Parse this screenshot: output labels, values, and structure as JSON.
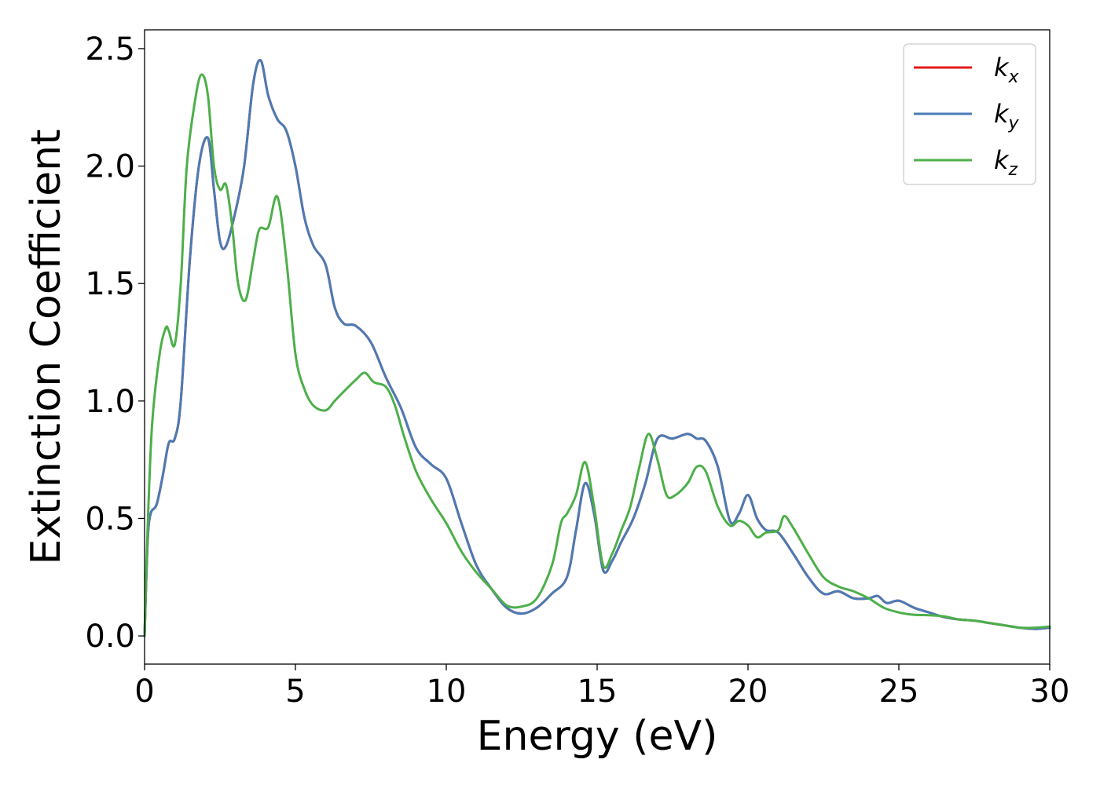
{
  "chart_data": {
    "type": "line",
    "xlabel": "Energy (eV)",
    "ylabel": "Extinction Coefficient",
    "xlim": [
      0,
      30
    ],
    "ylim": [
      -0.12,
      2.58
    ],
    "xticks": [
      0,
      5,
      10,
      15,
      20,
      25,
      30
    ],
    "xtick_labels": [
      "0",
      "5",
      "10",
      "15",
      "20",
      "25",
      "30"
    ],
    "yticks": [
      0.0,
      0.5,
      1.0,
      1.5,
      2.0,
      2.5
    ],
    "ytick_labels": [
      "0.0",
      "0.5",
      "1.0",
      "1.5",
      "2.0",
      "2.5"
    ],
    "grid": false,
    "legend_position": "top-right",
    "series": [
      {
        "name": "k_x",
        "label_base": "k",
        "label_sub": "x",
        "color": "#e41a1c",
        "x": [
          0,
          0.1,
          0.2,
          0.4,
          0.6,
          0.8,
          1.0,
          1.2,
          1.5,
          1.8,
          2.1,
          2.3,
          2.5,
          2.7,
          3.0,
          3.3,
          3.6,
          3.85,
          4.1,
          4.4,
          4.7,
          5.0,
          5.3,
          5.6,
          6.0,
          6.3,
          6.6,
          7.0,
          7.5,
          8.0,
          8.5,
          9.0,
          9.5,
          10.0,
          10.5,
          11.0,
          11.5,
          12.0,
          12.5,
          13.0,
          13.5,
          14.0,
          14.3,
          14.6,
          14.9,
          15.2,
          15.5,
          15.8,
          16.2,
          16.6,
          17.0,
          17.5,
          18.0,
          18.3,
          18.6,
          19.0,
          19.4,
          19.7,
          20.0,
          20.3,
          20.6,
          21.0,
          21.5,
          22.0,
          22.5,
          23.0,
          23.5,
          24.0,
          24.3,
          24.6,
          25.0,
          25.5,
          26.0,
          26.5,
          27.0,
          27.5,
          28.0,
          28.5,
          29.0,
          29.5,
          30.0
        ],
        "y": [
          0.0,
          0.4,
          0.52,
          0.56,
          0.68,
          0.82,
          0.84,
          1.0,
          1.6,
          2.0,
          2.12,
          1.9,
          1.68,
          1.66,
          1.8,
          2.0,
          2.35,
          2.45,
          2.3,
          2.2,
          2.15,
          2.0,
          1.78,
          1.66,
          1.58,
          1.4,
          1.33,
          1.32,
          1.25,
          1.1,
          0.97,
          0.8,
          0.73,
          0.67,
          0.48,
          0.3,
          0.2,
          0.12,
          0.095,
          0.12,
          0.18,
          0.25,
          0.45,
          0.65,
          0.52,
          0.28,
          0.32,
          0.4,
          0.5,
          0.65,
          0.84,
          0.84,
          0.86,
          0.84,
          0.83,
          0.72,
          0.49,
          0.52,
          0.6,
          0.5,
          0.45,
          0.44,
          0.35,
          0.25,
          0.18,
          0.19,
          0.16,
          0.16,
          0.17,
          0.14,
          0.15,
          0.12,
          0.1,
          0.08,
          0.07,
          0.065,
          0.055,
          0.045,
          0.035,
          0.03,
          0.035
        ]
      },
      {
        "name": "k_y",
        "label_base": "k",
        "label_sub": "y",
        "color": "#4b7bb4",
        "x": [
          0,
          0.1,
          0.2,
          0.4,
          0.6,
          0.8,
          1.0,
          1.2,
          1.5,
          1.8,
          2.1,
          2.3,
          2.5,
          2.7,
          3.0,
          3.3,
          3.6,
          3.85,
          4.1,
          4.4,
          4.7,
          5.0,
          5.3,
          5.6,
          6.0,
          6.3,
          6.6,
          7.0,
          7.5,
          8.0,
          8.5,
          9.0,
          9.5,
          10.0,
          10.5,
          11.0,
          11.5,
          12.0,
          12.5,
          13.0,
          13.5,
          14.0,
          14.3,
          14.6,
          14.9,
          15.2,
          15.5,
          15.8,
          16.2,
          16.6,
          17.0,
          17.5,
          18.0,
          18.3,
          18.6,
          19.0,
          19.4,
          19.7,
          20.0,
          20.3,
          20.6,
          21.0,
          21.5,
          22.0,
          22.5,
          23.0,
          23.5,
          24.0,
          24.3,
          24.6,
          25.0,
          25.5,
          26.0,
          26.5,
          27.0,
          27.5,
          28.0,
          28.5,
          29.0,
          29.5,
          30.0
        ],
        "y": [
          0.0,
          0.4,
          0.52,
          0.56,
          0.68,
          0.82,
          0.84,
          1.0,
          1.6,
          2.0,
          2.12,
          1.9,
          1.68,
          1.66,
          1.8,
          2.0,
          2.35,
          2.45,
          2.3,
          2.2,
          2.15,
          2.0,
          1.78,
          1.66,
          1.58,
          1.4,
          1.33,
          1.32,
          1.25,
          1.1,
          0.97,
          0.8,
          0.73,
          0.67,
          0.48,
          0.3,
          0.2,
          0.12,
          0.095,
          0.12,
          0.18,
          0.25,
          0.45,
          0.65,
          0.52,
          0.28,
          0.32,
          0.4,
          0.5,
          0.65,
          0.84,
          0.84,
          0.86,
          0.84,
          0.83,
          0.72,
          0.49,
          0.52,
          0.6,
          0.5,
          0.45,
          0.44,
          0.35,
          0.25,
          0.18,
          0.19,
          0.16,
          0.16,
          0.17,
          0.14,
          0.15,
          0.12,
          0.1,
          0.08,
          0.07,
          0.065,
          0.055,
          0.045,
          0.035,
          0.03,
          0.035
        ]
      },
      {
        "name": "k_z",
        "label_base": "k",
        "label_sub": "z",
        "color": "#4daf4a",
        "x": [
          0,
          0.1,
          0.25,
          0.5,
          0.7,
          0.8,
          1.0,
          1.2,
          1.4,
          1.7,
          1.9,
          2.1,
          2.3,
          2.5,
          2.7,
          2.9,
          3.1,
          3.35,
          3.6,
          3.8,
          4.1,
          4.4,
          4.7,
          5.0,
          5.3,
          5.6,
          6.0,
          6.3,
          6.6,
          7.0,
          7.3,
          7.6,
          8.0,
          8.3,
          8.6,
          9.0,
          9.5,
          10.0,
          10.5,
          11.0,
          11.5,
          12.0,
          12.5,
          13.0,
          13.5,
          13.8,
          14.0,
          14.3,
          14.6,
          14.9,
          15.2,
          15.5,
          15.8,
          16.1,
          16.4,
          16.7,
          17.0,
          17.3,
          17.6,
          18.0,
          18.3,
          18.6,
          19.0,
          19.4,
          19.7,
          20.0,
          20.3,
          20.6,
          21.0,
          21.2,
          21.5,
          22.0,
          22.5,
          23.0,
          23.5,
          24.0,
          24.5,
          25.0,
          25.5,
          26.0,
          26.5,
          27.0,
          27.5,
          28.0,
          28.5,
          29.0,
          29.5,
          30.0
        ],
        "y": [
          0.0,
          0.45,
          0.9,
          1.2,
          1.31,
          1.3,
          1.24,
          1.5,
          2.0,
          2.3,
          2.39,
          2.3,
          2.0,
          1.9,
          1.92,
          1.75,
          1.5,
          1.43,
          1.6,
          1.73,
          1.74,
          1.87,
          1.6,
          1.2,
          1.05,
          0.98,
          0.96,
          1.0,
          1.04,
          1.09,
          1.12,
          1.08,
          1.06,
          0.98,
          0.85,
          0.7,
          0.58,
          0.48,
          0.36,
          0.27,
          0.2,
          0.13,
          0.125,
          0.16,
          0.3,
          0.48,
          0.52,
          0.6,
          0.74,
          0.55,
          0.3,
          0.35,
          0.45,
          0.55,
          0.72,
          0.86,
          0.75,
          0.6,
          0.6,
          0.65,
          0.72,
          0.7,
          0.55,
          0.47,
          0.49,
          0.47,
          0.42,
          0.44,
          0.45,
          0.51,
          0.46,
          0.35,
          0.25,
          0.21,
          0.19,
          0.16,
          0.12,
          0.1,
          0.09,
          0.088,
          0.083,
          0.07,
          0.065,
          0.055,
          0.045,
          0.035,
          0.035,
          0.04
        ]
      }
    ]
  }
}
